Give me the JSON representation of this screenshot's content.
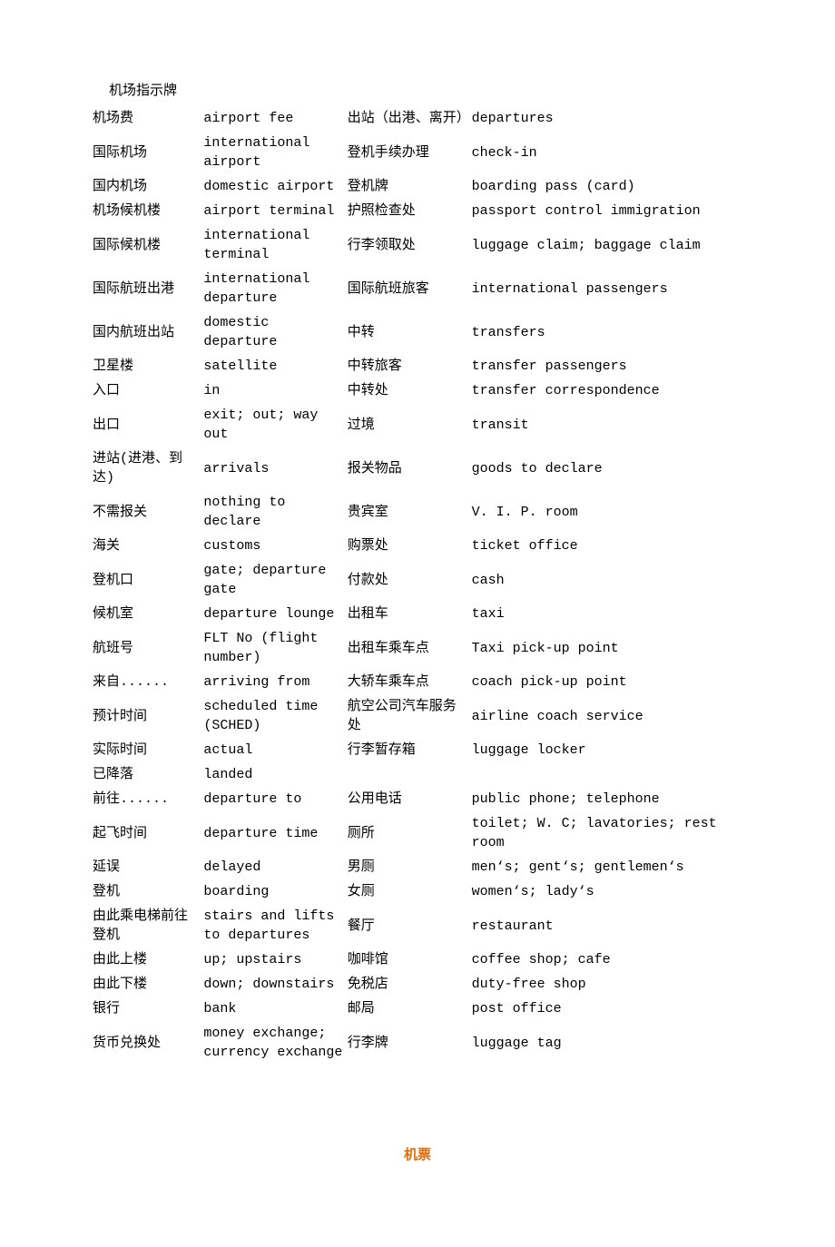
{
  "title": "机场指示牌",
  "section2_heading": "机票",
  "heading_color": "#e36c09",
  "text_color": "#000000",
  "background_color": "#ffffff",
  "font_size": 15,
  "table": {
    "columns": [
      "cn_left",
      "en_left",
      "cn_right",
      "en_right"
    ],
    "column_widths_pct": [
      17,
      22,
      19,
      42
    ],
    "rows": [
      [
        "机场费",
        "airport fee",
        "出站（出港、离开）",
        "departures"
      ],
      [
        "国际机场",
        "international airport",
        "登机手续办理",
        "check-in"
      ],
      [
        "国内机场",
        "domestic airport",
        "登机牌",
        "boarding pass (card)"
      ],
      [
        "机场候机楼",
        "airport terminal",
        "护照检查处",
        "passport control immigration"
      ],
      [
        "国际候机楼",
        "international terminal",
        "行李领取处",
        "luggage claim; baggage claim"
      ],
      [
        "国际航班出港",
        "international departure",
        "国际航班旅客",
        "international passengers"
      ],
      [
        "国内航班出站",
        "domestic departure",
        "中转",
        "transfers"
      ],
      [
        "卫星楼",
        "satellite",
        "中转旅客",
        "transfer passengers"
      ],
      [
        "入口",
        "in",
        "中转处",
        "transfer correspondence"
      ],
      [
        "出口",
        "exit; out; way out",
        "过境",
        "transit"
      ],
      [
        "进站(进港、到达)",
        "arrivals",
        "报关物品",
        "goods to declare"
      ],
      [
        "不需报关",
        "nothing to declare",
        "贵宾室",
        "V. I. P. room"
      ],
      [
        "海关",
        "customs",
        "购票处",
        "ticket office"
      ],
      [
        "登机口",
        "gate; departure gate",
        "付款处",
        "cash"
      ],
      [
        "候机室",
        "departure lounge",
        "出租车",
        "taxi"
      ],
      [
        "航班号",
        "FLT No (flight number)",
        "出租车乘车点",
        "Taxi pick-up point"
      ],
      [
        "来自......",
        "arriving from",
        "大轿车乘车点",
        "coach pick-up point"
      ],
      [
        "预计时间",
        "scheduled time (SCHED)",
        "航空公司汽车服务处",
        "airline coach service"
      ],
      [
        "实际时间",
        "actual",
        "行李暂存箱",
        "luggage locker"
      ],
      [
        "已降落",
        "landed",
        "",
        ""
      ],
      [
        "前往......",
        "departure to",
        "公用电话",
        "public phone; telephone"
      ],
      [
        "起飞时间",
        "departure time",
        "厕所",
        "toilet; W. C; lavatories; rest room"
      ],
      [
        "延误",
        "delayed",
        "男厕",
        "men‘s; gent‘s; gentlemen‘s"
      ],
      [
        "登机",
        "boarding",
        "女厕",
        "women‘s; lady‘s"
      ],
      [
        "由此乘电梯前往登机",
        "stairs and lifts to departures",
        "餐厅",
        "restaurant"
      ],
      [
        "由此上楼",
        "up; upstairs",
        "咖啡馆",
        "coffee shop; cafe"
      ],
      [
        "由此下楼",
        "down; downstairs",
        "免税店",
        "duty-free shop"
      ],
      [
        "银行",
        "bank",
        "邮局",
        "post office"
      ],
      [
        "货币兑换处",
        "money exchange; currency exchange",
        "行李牌",
        "luggage tag"
      ]
    ]
  }
}
